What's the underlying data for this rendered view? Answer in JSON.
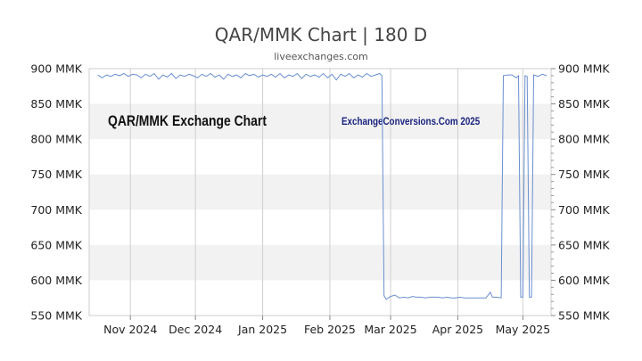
{
  "chart_data": {
    "type": "line",
    "title": "QAR/MMK Chart | 180 D",
    "subtitle": "liveexchanges.com",
    "watermark_left": "QAR/MMK Exchange Chart",
    "watermark_right": "ExchangeConversions.Com 2025",
    "ylim": [
      550,
      900
    ],
    "y_ticks": [
      900,
      850,
      800,
      750,
      700,
      650,
      600,
      550
    ],
    "y_unit": "MMK",
    "x_ticks": [
      {
        "label": "Nov 2024",
        "date": "2024-11-01"
      },
      {
        "label": "Dec 2024",
        "date": "2024-12-01"
      },
      {
        "label": "Jan 2025",
        "date": "2025-01-01"
      },
      {
        "label": "Feb 2025",
        "date": "2025-02-01"
      },
      {
        "label": "Mar 2025",
        "date": "2025-03-01"
      },
      {
        "label": "Apr 2025",
        "date": "2025-04-01"
      },
      {
        "label": "May 2025",
        "date": "2025-05-01"
      }
    ],
    "xlim": [
      "2024-10-13",
      "2025-05-14"
    ],
    "band_shading": "alternating-horizontal",
    "line_color": "#6a8fd0",
    "series": [
      {
        "values": [
          [
            "2024-10-17",
            891
          ],
          [
            "2024-10-19",
            887
          ],
          [
            "2024-10-21",
            891
          ],
          [
            "2024-10-23",
            889
          ],
          [
            "2024-10-25",
            892
          ],
          [
            "2024-10-27",
            890
          ],
          [
            "2024-10-29",
            893
          ],
          [
            "2024-10-31",
            889
          ],
          [
            "2024-11-02",
            892
          ],
          [
            "2024-11-04",
            891
          ],
          [
            "2024-11-06",
            887
          ],
          [
            "2024-11-08",
            892
          ],
          [
            "2024-11-10",
            889
          ],
          [
            "2024-11-12",
            893
          ],
          [
            "2024-11-14",
            885
          ],
          [
            "2024-11-16",
            891
          ],
          [
            "2024-11-18",
            888
          ],
          [
            "2024-11-20",
            893
          ],
          [
            "2024-11-22",
            886
          ],
          [
            "2024-11-24",
            891
          ],
          [
            "2024-11-26",
            889
          ],
          [
            "2024-11-28",
            892
          ],
          [
            "2024-11-30",
            890
          ],
          [
            "2024-12-02",
            887
          ],
          [
            "2024-12-04",
            892
          ],
          [
            "2024-12-06",
            889
          ],
          [
            "2024-12-08",
            893
          ],
          [
            "2024-12-10",
            888
          ],
          [
            "2024-12-12",
            891
          ],
          [
            "2024-12-14",
            885
          ],
          [
            "2024-12-16",
            892
          ],
          [
            "2024-12-18",
            889
          ],
          [
            "2024-12-20",
            891
          ],
          [
            "2024-12-22",
            887
          ],
          [
            "2024-12-24",
            893
          ],
          [
            "2024-12-26",
            890
          ],
          [
            "2024-12-28",
            892
          ],
          [
            "2024-12-30",
            888
          ],
          [
            "2025-01-01",
            891
          ],
          [
            "2025-01-03",
            889
          ],
          [
            "2025-01-05",
            892
          ],
          [
            "2025-01-07",
            888
          ],
          [
            "2025-01-09",
            893
          ],
          [
            "2025-01-11",
            887
          ],
          [
            "2025-01-13",
            891
          ],
          [
            "2025-01-15",
            889
          ],
          [
            "2025-01-17",
            893
          ],
          [
            "2025-01-19",
            886
          ],
          [
            "2025-01-21",
            892
          ],
          [
            "2025-01-23",
            889
          ],
          [
            "2025-01-25",
            891
          ],
          [
            "2025-01-27",
            888
          ],
          [
            "2025-01-29",
            893
          ],
          [
            "2025-01-31",
            887
          ],
          [
            "2025-02-02",
            892
          ],
          [
            "2025-02-04",
            884
          ],
          [
            "2025-02-06",
            892
          ],
          [
            "2025-02-08",
            889
          ],
          [
            "2025-02-10",
            893
          ],
          [
            "2025-02-12",
            887
          ],
          [
            "2025-02-14",
            891
          ],
          [
            "2025-02-16",
            888
          ],
          [
            "2025-02-18",
            893
          ],
          [
            "2025-02-20",
            889
          ],
          [
            "2025-02-22",
            891
          ],
          [
            "2025-02-24",
            893
          ],
          [
            "2025-02-25",
            890
          ],
          [
            "2025-02-26",
            578
          ],
          [
            "2025-02-27",
            573
          ],
          [
            "2025-03-01",
            577
          ],
          [
            "2025-03-03",
            579
          ],
          [
            "2025-03-05",
            575
          ],
          [
            "2025-03-07",
            576
          ],
          [
            "2025-03-09",
            575
          ],
          [
            "2025-03-11",
            577
          ],
          [
            "2025-03-13",
            576
          ],
          [
            "2025-03-15",
            576
          ],
          [
            "2025-03-17",
            575
          ],
          [
            "2025-03-19",
            576
          ],
          [
            "2025-03-21",
            576
          ],
          [
            "2025-03-23",
            576
          ],
          [
            "2025-03-25",
            575
          ],
          [
            "2025-03-27",
            576
          ],
          [
            "2025-03-29",
            575
          ],
          [
            "2025-03-31",
            575
          ],
          [
            "2025-04-02",
            576
          ],
          [
            "2025-04-04",
            575
          ],
          [
            "2025-04-06",
            575
          ],
          [
            "2025-04-08",
            575
          ],
          [
            "2025-04-10",
            575
          ],
          [
            "2025-04-12",
            575
          ],
          [
            "2025-04-14",
            575
          ],
          [
            "2025-04-16",
            583
          ],
          [
            "2025-04-17",
            576
          ],
          [
            "2025-04-19",
            576
          ],
          [
            "2025-04-21",
            575
          ],
          [
            "2025-04-22",
            890
          ],
          [
            "2025-04-24",
            891
          ],
          [
            "2025-04-26",
            891
          ],
          [
            "2025-04-28",
            887
          ],
          [
            "2025-04-29",
            890
          ],
          [
            "2025-04-30",
            576
          ],
          [
            "2025-05-01",
            576
          ],
          [
            "2025-05-02",
            890
          ],
          [
            "2025-05-03",
            889
          ],
          [
            "2025-05-04",
            576
          ],
          [
            "2025-05-05",
            576
          ],
          [
            "2025-05-06",
            891
          ],
          [
            "2025-05-08",
            889
          ],
          [
            "2025-05-10",
            892
          ],
          [
            "2025-05-12",
            890
          ]
        ]
      }
    ]
  }
}
